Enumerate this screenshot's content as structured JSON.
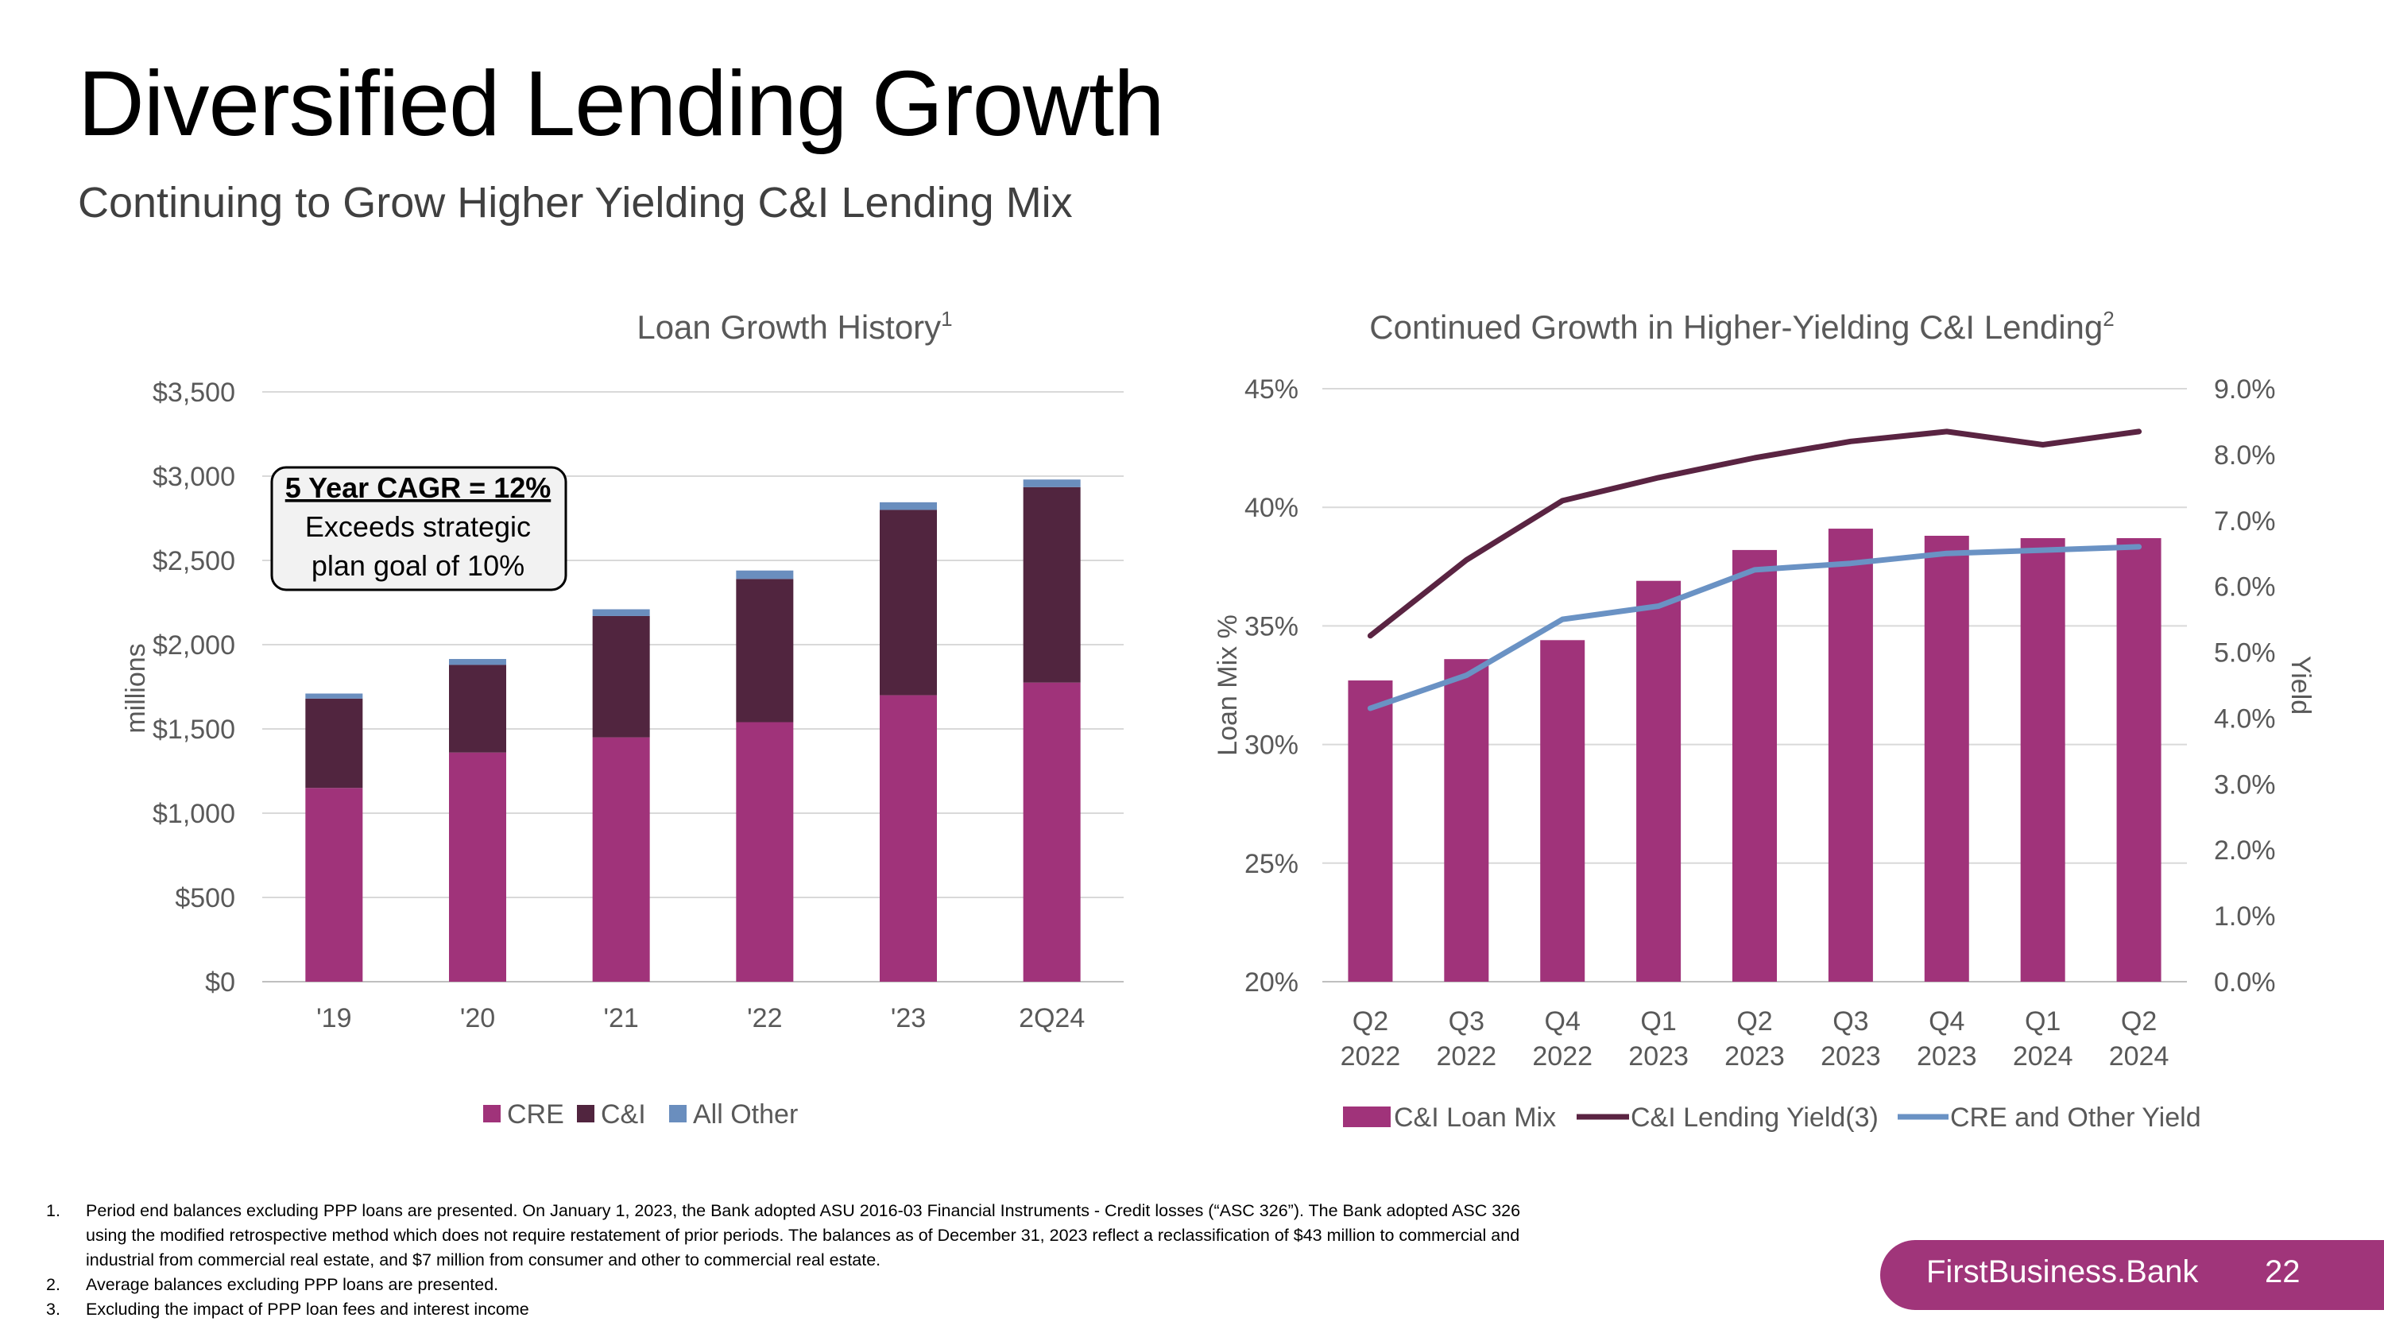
{
  "title": "Diversified Lending Growth",
  "subtitle": "Continuing to Grow Higher Yielding C&I Lending Mix",
  "colors": {
    "cre": "#a0337a",
    "ci": "#51253f",
    "other": "#6a8ebe",
    "ci_mix_bar": "#a0337a",
    "ci_yield_line": "#5a2442",
    "cre_yield_line": "#6a92c4",
    "brand": "#a0357a"
  },
  "chart_data": [
    {
      "type": "bar",
      "stacked": true,
      "title": "Loan Growth History",
      "title_sup": "1",
      "xlabel": "",
      "ylabel": "millions",
      "ylim": [
        0,
        3500
      ],
      "y_ticks": [
        "$0",
        "$500",
        "$1,000",
        "$1,500",
        "$2,000",
        "$2,500",
        "$3,000",
        "$3,500"
      ],
      "categories": [
        "'19",
        "'20",
        "'21",
        "'22",
        "'23",
        "2Q24"
      ],
      "series": [
        {
          "name": "CRE",
          "values": [
            1150,
            1360,
            1450,
            1540,
            1700,
            1775
          ]
        },
        {
          "name": "C&I",
          "values": [
            530,
            520,
            720,
            850,
            1100,
            1160
          ]
        },
        {
          "name": "All Other",
          "values": [
            30,
            35,
            40,
            50,
            45,
            45
          ]
        }
      ],
      "legend_position": "bottom",
      "annotation": {
        "line1": "5 Year CAGR = 12%",
        "line2": "Exceeds strategic",
        "line3": "plan goal of 10%"
      }
    },
    {
      "type": "bar+line",
      "title": "Continued Growth in Higher-Yielding C&I Lending",
      "title_sup": "2",
      "ylabel_left": "Loan Mix %",
      "ylabel_right": "Yield",
      "ylim_left": [
        20,
        45
      ],
      "ylim_right": [
        0,
        9
      ],
      "y_ticks_left": [
        "20%",
        "25%",
        "30%",
        "35%",
        "40%",
        "45%"
      ],
      "y_ticks_right": [
        "0.0%",
        "1.0%",
        "2.0%",
        "3.0%",
        "4.0%",
        "5.0%",
        "6.0%",
        "7.0%",
        "8.0%",
        "9.0%"
      ],
      "categories": [
        {
          "q": "Q2",
          "y": "2022"
        },
        {
          "q": "Q3",
          "y": "2022"
        },
        {
          "q": "Q4",
          "y": "2022"
        },
        {
          "q": "Q1",
          "y": "2023"
        },
        {
          "q": "Q2",
          "y": "2023"
        },
        {
          "q": "Q3",
          "y": "2023"
        },
        {
          "q": "Q4",
          "y": "2023"
        },
        {
          "q": "Q1",
          "y": "2024"
        },
        {
          "q": "Q2",
          "y": "2024"
        }
      ],
      "series": [
        {
          "name": "C&I Loan Mix",
          "kind": "bar",
          "axis": "left",
          "values": [
            32.7,
            33.6,
            34.4,
            36.9,
            38.2,
            39.1,
            38.8,
            38.7,
            38.7
          ]
        },
        {
          "name": "C&I Lending Yield(3)",
          "kind": "line",
          "axis": "right",
          "values": [
            5.25,
            6.4,
            7.3,
            7.65,
            7.95,
            8.2,
            8.35,
            8.15,
            8.35
          ]
        },
        {
          "name": "CRE and Other Yield",
          "kind": "line",
          "axis": "right",
          "values": [
            4.15,
            4.65,
            5.5,
            5.7,
            6.25,
            6.35,
            6.5,
            6.55,
            6.6
          ]
        }
      ],
      "legend_position": "bottom"
    }
  ],
  "footnotes": [
    {
      "num": "1.",
      "text": "Period end balances excluding PPP loans are presented. On January 1, 2023, the Bank adopted ASU 2016-03 Financial Instruments - Credit losses (“ASC 326”). The Bank adopted ASC 326 using the modified retrospective method which does not require restatement of prior periods. The balances as of December 31, 2023 reflect a reclassification of $43 million to commercial and industrial from commercial real estate, and $7 million from consumer and other to commercial real estate."
    },
    {
      "num": "2.",
      "text": "Average balances excluding PPP loans are presented."
    },
    {
      "num": "3.",
      "text": "Excluding the impact of PPP loan fees and interest income"
    }
  ],
  "brand": {
    "name": "FirstBusiness.Bank",
    "page": "22"
  }
}
